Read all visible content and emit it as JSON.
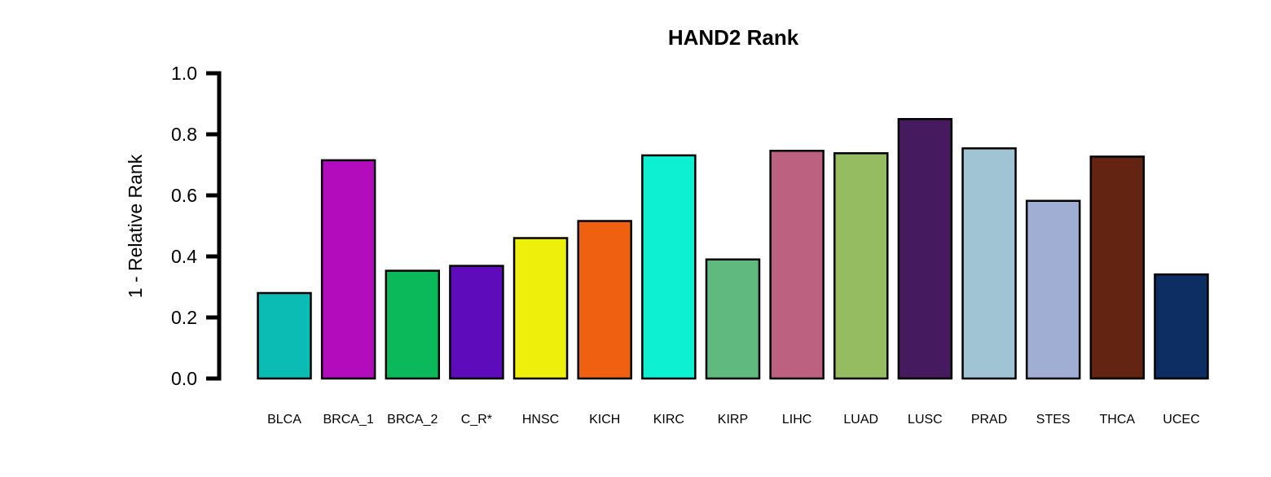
{
  "chart_data": {
    "type": "bar",
    "title": "HAND2 Rank",
    "xlabel": "",
    "ylabel": "1 - Relative Rank",
    "ylim": [
      0,
      1.0
    ],
    "yticks": [
      "0.0",
      "0.2",
      "0.4",
      "0.6",
      "0.8",
      "1.0"
    ],
    "yticks_values": [
      0.0,
      0.2,
      0.4,
      0.6,
      0.8,
      1.0
    ],
    "categories": [
      "BLCA",
      "BRCA_1",
      "BRCA_2",
      "C_R*",
      "HNSC",
      "KICH",
      "KIRC",
      "KIRP",
      "LIHC",
      "LUAD",
      "LUSC",
      "PRAD",
      "STES",
      "THCA",
      "UCEC"
    ],
    "values": [
      0.28,
      0.715,
      0.353,
      0.369,
      0.46,
      0.516,
      0.731,
      0.39,
      0.746,
      0.738,
      0.85,
      0.754,
      0.582,
      0.727,
      0.341
    ],
    "colors": [
      "#0bbcb5",
      "#b30cbd",
      "#0bb85a",
      "#5e0bbb",
      "#eef00c",
      "#f06011",
      "#0ef0d2",
      "#60b97f",
      "#bd6180",
      "#96bc62",
      "#461a5f",
      "#a0c4d3",
      "#a0aed3",
      "#632411",
      "#0d2e63"
    ],
    "grid": false,
    "legend": "none"
  }
}
